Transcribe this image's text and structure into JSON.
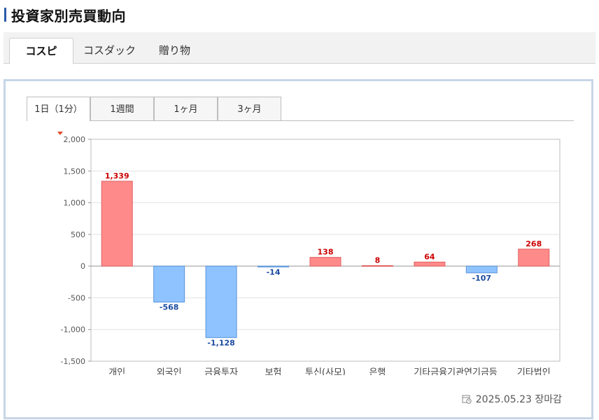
{
  "page": {
    "title": "投資家別売買動向"
  },
  "market_tabs": [
    {
      "label": "コスピ",
      "active": true
    },
    {
      "label": "コスダック",
      "active": false
    },
    {
      "label": "贈り物",
      "active": false
    }
  ],
  "period_tabs": [
    {
      "label": "1日（1分）",
      "active": true
    },
    {
      "label": "1週間",
      "active": false
    },
    {
      "label": "1ヶ月",
      "active": false
    },
    {
      "label": "3ヶ月",
      "active": false
    }
  ],
  "footer": {
    "status": "2025.05.23 장마감",
    "icon": "calendar-clock-icon"
  },
  "colors": {
    "positive_fill": "#ff8a8a",
    "positive_stroke": "#e06060",
    "positive_label": "#cc0000",
    "negative_fill": "#8fc3ff",
    "negative_stroke": "#5a94d8",
    "negative_label": "#1a4aa0",
    "accent": "#2b5aa8"
  },
  "chart_data": {
    "type": "bar",
    "categories": [
      "개인",
      "외국인",
      "금융투자",
      "보험",
      "투신(사모)",
      "은행",
      "기타금융",
      "기관연기금등",
      "기타법인"
    ],
    "category_labels": [
      "개인",
      "외국인",
      "금융투자",
      "보험",
      "투신(사모)",
      "은행",
      "기타금융기관연기금등",
      "",
      "기타법인"
    ],
    "values": [
      1339,
      -568,
      -1128,
      -14,
      138,
      8,
      64,
      -107,
      268
    ],
    "data_labels": [
      "1,339",
      "-568",
      "-1,128",
      "-14",
      "138",
      "8",
      "64",
      "-107",
      "268"
    ],
    "yticks": [
      "2,000",
      "1,500",
      "1,000",
      "500",
      "0",
      "-500",
      "-1,000",
      "-1,500"
    ],
    "ytick_values": [
      2000,
      1500,
      1000,
      500,
      0,
      -500,
      -1000,
      -1500
    ],
    "ylim": [
      -1500,
      2000
    ],
    "grid": true,
    "title": "",
    "xlabel": "",
    "ylabel": ""
  }
}
